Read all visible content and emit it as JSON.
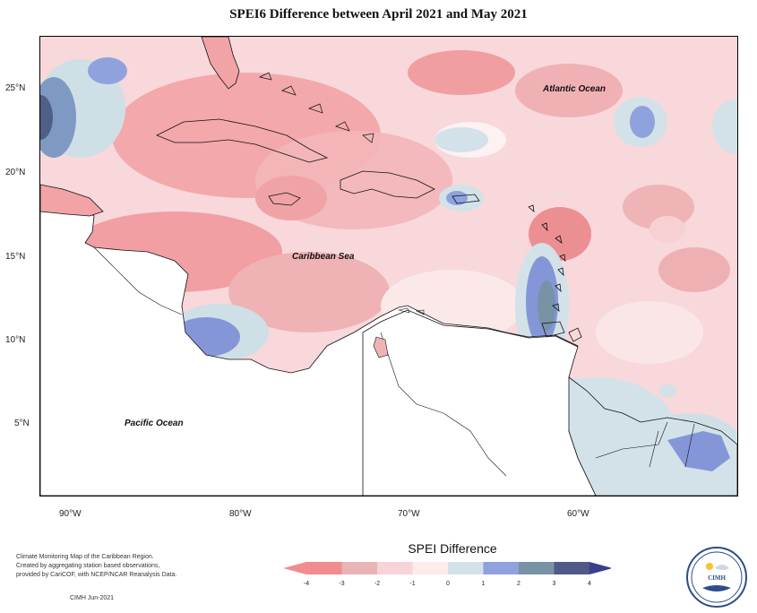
{
  "title": "SPEI6 Difference between April 2021 and May 2021",
  "map": {
    "latitude_labels": [
      "25°N",
      "20°N",
      "15°N",
      "10°N",
      "5°N"
    ],
    "longitude_labels": [
      "90°W",
      "80°W",
      "70°W",
      "60°W"
    ],
    "place_labels": {
      "atlantic": "Atlantic Ocean",
      "caribbean": "Caribbean Sea",
      "pacific": "Pacific Ocean"
    }
  },
  "legend": {
    "title": "SPEI Difference",
    "ticks": [
      "-4",
      "-3",
      "-2",
      "-1",
      "0",
      "1",
      "2",
      "3",
      "4"
    ],
    "colors": [
      "#f28c8f",
      "#e8b4b6",
      "#f8d3d7",
      "#fdecea",
      "#d2e2e8",
      "#8fa2dd",
      "#7892a6",
      "#4f5a86",
      "#3b3f8a"
    ]
  },
  "footer": {
    "line1": "Climate Monitoring Map of the Caribbean Region.",
    "line2": "Created by aggregating station based observations,",
    "line3": "provided by CariCOF, with NCEP/NCAR Reanalysis Data.",
    "date": "CIMH Jun-2021"
  },
  "logo": {
    "text": "CIMH"
  }
}
